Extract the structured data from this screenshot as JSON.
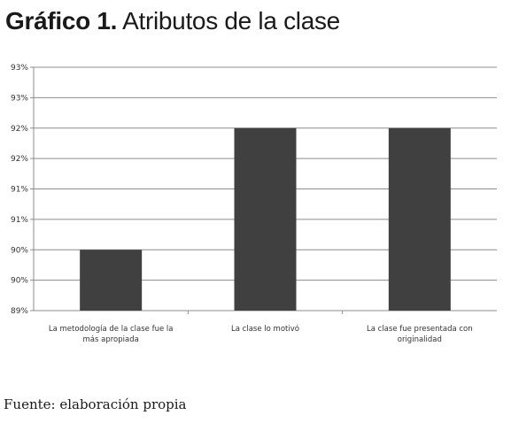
{
  "figure": {
    "title_lead": "Gráfico 1.",
    "title_rest": "Atributos de la clase",
    "source": "Fuente: elaboración propia"
  },
  "chart_data": {
    "type": "bar",
    "title": "Atributos de la clase",
    "categories": [
      [
        "La metodología de la clase fue la",
        "más apropiada"
      ],
      [
        "La clase lo motivó"
      ],
      [
        "La clase fue presentada con",
        "originalidad"
      ]
    ],
    "values": [
      0.9,
      0.92,
      0.92
    ],
    "ylim": [
      0.89,
      0.93
    ],
    "yticks": [
      0.89,
      0.895,
      0.9,
      0.905,
      0.91,
      0.915,
      0.92,
      0.925,
      0.93
    ],
    "ytick_labels": [
      "89%",
      "90%",
      "90%",
      "91%",
      "91%",
      "92%",
      "92%",
      "93%",
      "93%"
    ],
    "xlabel": "",
    "ylabel": "",
    "grid": true,
    "legend": "none",
    "bar_color": "#404040",
    "grid_color": "#8c8c8c"
  }
}
